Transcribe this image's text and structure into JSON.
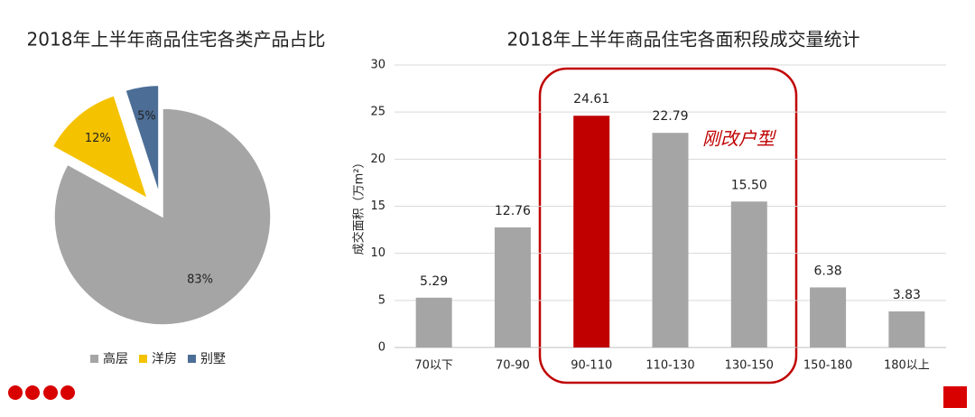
{
  "chart_data": [
    {
      "type": "pie",
      "title": "2018年上半年商品住宅各类产品占比",
      "categories": [
        "高层",
        "洋房",
        "别墅"
      ],
      "values": [
        83,
        12,
        5
      ],
      "value_labels": [
        "83%",
        "12%",
        "5%"
      ],
      "colors": [
        "#a5a5a5",
        "#f5c200",
        "#4c6e96"
      ],
      "legend": "bottom"
    },
    {
      "type": "bar",
      "title": "2018年上半年商品住宅各面积段成交量统计",
      "ylabel": "成交面积（万m²）",
      "categories": [
        "70以下",
        "70-90",
        "90-110",
        "110-130",
        "130-150",
        "150-180",
        "180以上"
      ],
      "values": [
        5.29,
        12.76,
        24.61,
        22.79,
        15.5,
        6.38,
        3.83
      ],
      "value_labels": [
        "5.29",
        "12.76",
        "24.61",
        "22.79",
        "15.50",
        "6.38",
        "3.83"
      ],
      "colors": [
        "#a5a5a5",
        "#a5a5a5",
        "#c00000",
        "#a5a5a5",
        "#a5a5a5",
        "#a5a5a5",
        "#a5a5a5"
      ],
      "ylim": [
        0,
        30
      ],
      "yticks": [
        0,
        5,
        10,
        15,
        20,
        25,
        30
      ],
      "grid": true,
      "annotation": "刚改户型"
    }
  ]
}
